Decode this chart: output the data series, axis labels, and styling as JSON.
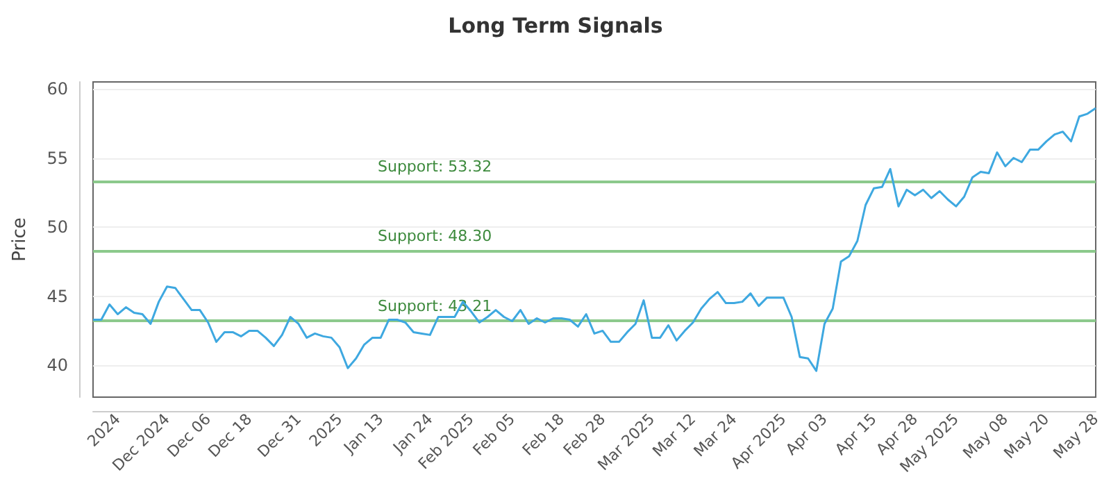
{
  "chart_data": {
    "type": "line",
    "title": "Long Term Signals",
    "ylabel": "Price",
    "categories": [
      null,
      null,
      null,
      "2024",
      null,
      null,
      null,
      null,
      null,
      "Dec 2024",
      null,
      null,
      null,
      null,
      "Dec 06",
      null,
      null,
      null,
      null,
      "Dec 18",
      null,
      null,
      null,
      null,
      null,
      "Dec 31",
      null,
      null,
      null,
      null,
      "2025",
      null,
      null,
      null,
      null,
      "Jan 13",
      null,
      null,
      null,
      null,
      null,
      "Jan 24",
      null,
      null,
      null,
      null,
      "Feb 2025",
      null,
      null,
      null,
      null,
      "Feb 05",
      null,
      null,
      null,
      null,
      null,
      "Feb 18",
      null,
      null,
      null,
      null,
      "Feb 28",
      null,
      null,
      null,
      null,
      null,
      "Mar 2025",
      null,
      null,
      null,
      null,
      "Mar 12",
      null,
      null,
      null,
      null,
      "Mar 24",
      null,
      null,
      null,
      null,
      null,
      "Apr 2025",
      null,
      null,
      null,
      null,
      "Apr 03",
      null,
      null,
      null,
      null,
      null,
      "Apr 15",
      null,
      null,
      null,
      null,
      "Apr 28",
      null,
      null,
      null,
      null,
      "May 2025",
      null,
      null,
      null,
      null,
      null,
      "May 08",
      null,
      null,
      null,
      null,
      "May 20",
      null,
      null,
      null,
      null,
      null,
      "May 28"
    ],
    "series": [
      {
        "color": "#3ea8e0",
        "values": [
          43.3,
          43.3,
          44.4,
          43.7,
          44.2,
          43.8,
          43.7,
          43.0,
          44.6,
          45.7,
          45.6,
          44.8,
          44.0,
          44.0,
          43.1,
          41.7,
          42.4,
          42.4,
          42.1,
          42.5,
          42.5,
          42.0,
          41.4,
          42.2,
          43.5,
          43.0,
          42.0,
          42.3,
          42.1,
          42.0,
          41.3,
          39.8,
          40.5,
          41.5,
          42.0,
          42.0,
          43.3,
          43.3,
          43.1,
          42.4,
          42.3,
          42.2,
          43.5,
          43.5,
          43.5,
          44.6,
          43.9,
          43.1,
          43.5,
          44.0,
          43.5,
          43.2,
          44.0,
          43.0,
          43.4,
          43.1,
          43.4,
          43.4,
          43.3,
          42.8,
          43.7,
          42.3,
          42.5,
          41.7,
          41.7,
          42.4,
          43.0,
          44.7,
          42.0,
          42.0,
          42.9,
          41.8,
          42.5,
          43.1,
          44.1,
          44.8,
          45.3,
          44.5,
          44.5,
          44.6,
          45.2,
          44.3,
          44.9,
          44.9,
          44.9,
          43.5,
          40.6,
          40.5,
          39.6,
          43.0,
          44.1,
          47.5,
          47.9,
          49.0,
          51.6,
          52.8,
          52.9,
          54.2,
          51.5,
          52.7,
          52.3,
          52.7,
          52.1,
          52.6,
          52.0,
          51.5,
          52.2,
          53.6,
          54.0,
          53.9,
          55.4,
          54.4,
          55.0,
          54.7,
          55.6,
          55.6,
          56.2,
          56.7,
          56.9,
          56.2,
          58.0,
          58.2,
          58.6
        ]
      }
    ],
    "ylim": [
      37.7,
      60.5
    ],
    "yticks": [
      40,
      45,
      50,
      55,
      60
    ],
    "ref_lines": [
      {
        "axis": "y",
        "value": 53.32,
        "label": "Support: 53.32",
        "color": "#8cc98c"
      },
      {
        "axis": "y",
        "value": 48.3,
        "label": "Support: 48.30",
        "color": "#8cc98c"
      },
      {
        "axis": "y",
        "value": 43.21,
        "label": "Support: 43.21",
        "color": "#8cc98c"
      }
    ],
    "grid": "y",
    "marker": "none",
    "line_style": "solid"
  }
}
